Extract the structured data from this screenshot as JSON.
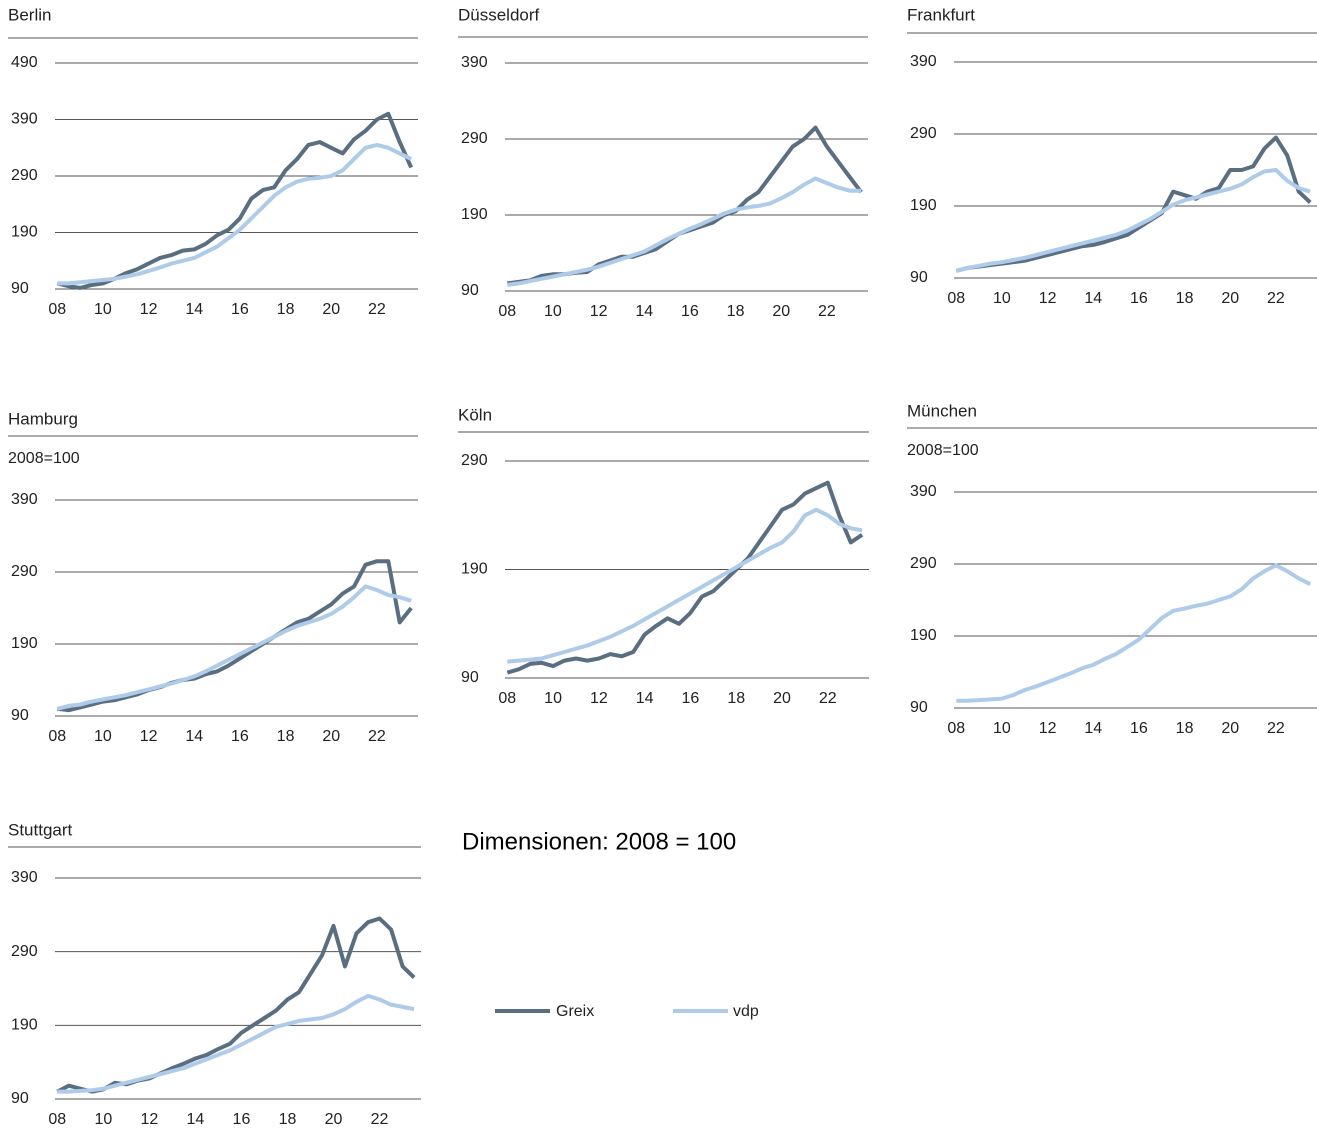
{
  "chart_data": [
    {
      "type": "line",
      "title": "Berlin",
      "x": [
        8,
        8.5,
        9,
        9.5,
        10,
        10.5,
        11,
        11.5,
        12,
        12.5,
        13,
        13.5,
        14,
        14.5,
        15,
        15.5,
        16,
        16.5,
        17,
        17.5,
        18,
        18.5,
        19,
        19.5,
        20,
        20.5,
        21,
        21.5,
        22,
        22.5,
        23,
        23.5
      ],
      "series": [
        {
          "name": "Greix",
          "color": "#5a6e82",
          "values": [
            100,
            95,
            92,
            97,
            100,
            108,
            118,
            125,
            135,
            145,
            150,
            158,
            160,
            170,
            185,
            195,
            215,
            250,
            265,
            270,
            300,
            320,
            345,
            350,
            340,
            330,
            355,
            370,
            390,
            400,
            350,
            305
          ]
        },
        {
          "name": "vdp",
          "color": "#aecbea",
          "values": [
            100,
            100,
            102,
            104,
            106,
            108,
            112,
            116,
            122,
            128,
            135,
            140,
            145,
            155,
            165,
            180,
            195,
            215,
            235,
            255,
            270,
            280,
            285,
            287,
            290,
            300,
            320,
            340,
            345,
            340,
            330,
            320
          ]
        }
      ],
      "xlim": [
        7.9,
        23.8
      ],
      "xticks": [
        {
          "value": 8,
          "label": "08"
        },
        10,
        12,
        14,
        16,
        18,
        20,
        22
      ],
      "ylim": [
        90,
        490
      ],
      "yticks": [
        90,
        190,
        290,
        390,
        490
      ],
      "grid": true
    },
    {
      "type": "line",
      "title": "Düsseldorf",
      "x": [
        8,
        8.5,
        9,
        9.5,
        10,
        10.5,
        11,
        11.5,
        12,
        12.5,
        13,
        13.5,
        14,
        14.5,
        15,
        15.5,
        16,
        16.5,
        17,
        17.5,
        18,
        18.5,
        19,
        19.5,
        20,
        20.5,
        21,
        21.5,
        22,
        22.5,
        23,
        23.5
      ],
      "series": [
        {
          "name": "Greix",
          "color": "#5a6e82",
          "values": [
            100,
            102,
            104,
            110,
            112,
            112,
            114,
            115,
            125,
            130,
            135,
            135,
            140,
            145,
            155,
            165,
            170,
            175,
            180,
            190,
            195,
            210,
            220,
            240,
            260,
            280,
            290,
            305,
            280,
            260,
            240,
            220
          ]
        },
        {
          "name": "vdp",
          "color": "#aecbea",
          "values": [
            98,
            100,
            103,
            106,
            109,
            112,
            115,
            118,
            122,
            127,
            132,
            137,
            142,
            150,
            158,
            165,
            172,
            178,
            185,
            192,
            197,
            200,
            202,
            205,
            212,
            220,
            230,
            238,
            232,
            226,
            222,
            222
          ]
        }
      ],
      "xlim": [
        7.9,
        23.8
      ],
      "xticks": [
        {
          "value": 8,
          "label": "08"
        },
        10,
        12,
        14,
        16,
        18,
        20,
        22
      ],
      "ylim": [
        90,
        390
      ],
      "yticks": [
        90,
        190,
        290,
        390
      ],
      "grid": true
    },
    {
      "type": "line",
      "title": "Frankfurt",
      "x": [
        8,
        8.5,
        9,
        9.5,
        10,
        10.5,
        11,
        11.5,
        12,
        12.5,
        13,
        13.5,
        14,
        14.5,
        15,
        15.5,
        16,
        16.5,
        17,
        17.5,
        18,
        18.5,
        19,
        19.5,
        20,
        20.5,
        21,
        21.5,
        22,
        22.5,
        23,
        23.5
      ],
      "series": [
        {
          "name": "Greix",
          "color": "#5a6e82",
          "values": [
            100,
            104,
            106,
            108,
            110,
            112,
            114,
            118,
            122,
            126,
            130,
            134,
            136,
            140,
            145,
            150,
            160,
            170,
            180,
            210,
            205,
            200,
            210,
            215,
            240,
            240,
            245,
            270,
            285,
            260,
            210,
            195
          ]
        },
        {
          "name": "vdp",
          "color": "#aecbea",
          "values": [
            100,
            104,
            107,
            110,
            112,
            115,
            118,
            122,
            126,
            130,
            134,
            138,
            142,
            146,
            150,
            156,
            164,
            172,
            182,
            192,
            198,
            202,
            206,
            210,
            214,
            220,
            230,
            238,
            240,
            225,
            215,
            210
          ]
        }
      ],
      "xlim": [
        7.9,
        23.8
      ],
      "xticks": [
        {
          "value": 8,
          "label": "08"
        },
        10,
        12,
        14,
        16,
        18,
        20,
        22
      ],
      "ylim": [
        90,
        390
      ],
      "yticks": [
        90,
        190,
        290,
        390
      ],
      "grid": true
    },
    {
      "type": "line",
      "title": "Hamburg",
      "subtitle": "2008=100",
      "x": [
        8,
        8.5,
        9,
        9.5,
        10,
        10.5,
        11,
        11.5,
        12,
        12.5,
        13,
        13.5,
        14,
        14.5,
        15,
        15.5,
        16,
        16.5,
        17,
        17.5,
        18,
        18.5,
        19,
        19.5,
        20,
        20.5,
        21,
        21.5,
        22,
        22.5,
        23,
        23.5
      ],
      "series": [
        {
          "name": "Greix",
          "color": "#5a6e82",
          "values": [
            100,
            98,
            102,
            106,
            110,
            112,
            116,
            120,
            126,
            130,
            136,
            140,
            142,
            148,
            152,
            160,
            170,
            180,
            190,
            200,
            210,
            220,
            225,
            235,
            245,
            260,
            270,
            300,
            305,
            305,
            220,
            240
          ]
        },
        {
          "name": "vdp",
          "color": "#aecbea",
          "values": [
            100,
            104,
            106,
            110,
            113,
            116,
            119,
            123,
            127,
            131,
            135,
            140,
            145,
            152,
            160,
            168,
            176,
            184,
            192,
            200,
            208,
            215,
            220,
            225,
            232,
            242,
            255,
            270,
            265,
            258,
            255,
            250
          ]
        }
      ],
      "xlim": [
        7.9,
        23.8
      ],
      "xticks": [
        {
          "value": 8,
          "label": "08"
        },
        10,
        12,
        14,
        16,
        18,
        20,
        22
      ],
      "ylim": [
        90,
        390
      ],
      "yticks": [
        90,
        190,
        290,
        390
      ],
      "grid": true
    },
    {
      "type": "line",
      "title": "Köln",
      "x": [
        8,
        8.5,
        9,
        9.5,
        10,
        10.5,
        11,
        11.5,
        12,
        12.5,
        13,
        13.5,
        14,
        14.5,
        15,
        15.5,
        16,
        16.5,
        17,
        17.5,
        18,
        18.5,
        19,
        19.5,
        20,
        20.5,
        21,
        21.5,
        22,
        22.5,
        23,
        23.5
      ],
      "series": [
        {
          "name": "Greix",
          "color": "#5a6e82",
          "values": [
            95,
            98,
            103,
            104,
            101,
            106,
            108,
            106,
            108,
            112,
            110,
            114,
            130,
            138,
            145,
            140,
            150,
            165,
            170,
            180,
            190,
            200,
            215,
            230,
            245,
            250,
            260,
            265,
            270,
            240,
            215,
            222
          ]
        },
        {
          "name": "vdp",
          "color": "#aecbea",
          "values": [
            105,
            106,
            107,
            108,
            111,
            114,
            117,
            120,
            124,
            128,
            133,
            138,
            144,
            150,
            156,
            162,
            168,
            174,
            180,
            186,
            192,
            198,
            204,
            210,
            215,
            225,
            240,
            245,
            240,
            232,
            228,
            226
          ]
        }
      ],
      "xlim": [
        7.9,
        23.8
      ],
      "xticks": [
        {
          "value": 8,
          "label": "08"
        },
        10,
        12,
        14,
        16,
        18,
        20,
        22
      ],
      "ylim": [
        90,
        290
      ],
      "yticks": [
        90,
        190,
        290
      ],
      "grid": true
    },
    {
      "type": "line",
      "title": "München",
      "subtitle": "2008=100",
      "x": [
        8,
        8.5,
        9,
        9.5,
        10,
        10.5,
        11,
        11.5,
        12,
        12.5,
        13,
        13.5,
        14,
        14.5,
        15,
        15.5,
        16,
        16.5,
        17,
        17.5,
        18,
        18.5,
        19,
        19.5,
        20,
        20.5,
        21,
        21.5,
        22,
        22.5,
        23,
        23.5
      ],
      "series": [
        {
          "name": "vdp",
          "color": "#aecbea",
          "values": [
            100,
            100,
            101,
            102,
            103,
            108,
            115,
            120,
            126,
            132,
            138,
            145,
            150,
            158,
            165,
            175,
            185,
            200,
            215,
            225,
            228,
            232,
            235,
            240,
            245,
            255,
            270,
            280,
            288,
            280,
            270,
            262
          ]
        }
      ],
      "xlim": [
        7.9,
        23.8
      ],
      "xticks": [
        {
          "value": 8,
          "label": "08"
        },
        10,
        12,
        14,
        16,
        18,
        20,
        22
      ],
      "ylim": [
        90,
        390
      ],
      "yticks": [
        90,
        190,
        290,
        390
      ],
      "grid": true
    },
    {
      "type": "line",
      "title": "Stuttgart",
      "x": [
        8,
        8.5,
        9,
        9.5,
        10,
        10.5,
        11,
        11.5,
        12,
        12.5,
        13,
        13.5,
        14,
        14.5,
        15,
        15.5,
        16,
        16.5,
        17,
        17.5,
        18,
        18.5,
        19,
        19.5,
        20,
        20.5,
        21,
        21.5,
        22,
        22.5,
        23,
        23.5
      ],
      "series": [
        {
          "name": "Greix",
          "color": "#5a6e82",
          "values": [
            100,
            108,
            104,
            100,
            103,
            112,
            110,
            115,
            118,
            125,
            132,
            138,
            145,
            150,
            158,
            165,
            180,
            190,
            200,
            210,
            225,
            235,
            260,
            285,
            325,
            270,
            315,
            330,
            335,
            320,
            270,
            255
          ]
        },
        {
          "name": "vdp",
          "color": "#aecbea",
          "values": [
            100,
            100,
            101,
            102,
            104,
            108,
            112,
            116,
            120,
            124,
            128,
            132,
            138,
            144,
            150,
            156,
            164,
            172,
            180,
            188,
            192,
            196,
            198,
            200,
            205,
            212,
            222,
            230,
            225,
            218,
            215,
            212
          ]
        }
      ],
      "xlim": [
        7.9,
        23.8
      ],
      "xticks": [
        {
          "value": 8,
          "label": "08"
        },
        10,
        12,
        14,
        16,
        18,
        20,
        22
      ],
      "ylim": [
        90,
        390
      ],
      "yticks": [
        90,
        190,
        290,
        390
      ],
      "grid": true
    }
  ],
  "note": "Dimensionen: 2008 = 100"
}
